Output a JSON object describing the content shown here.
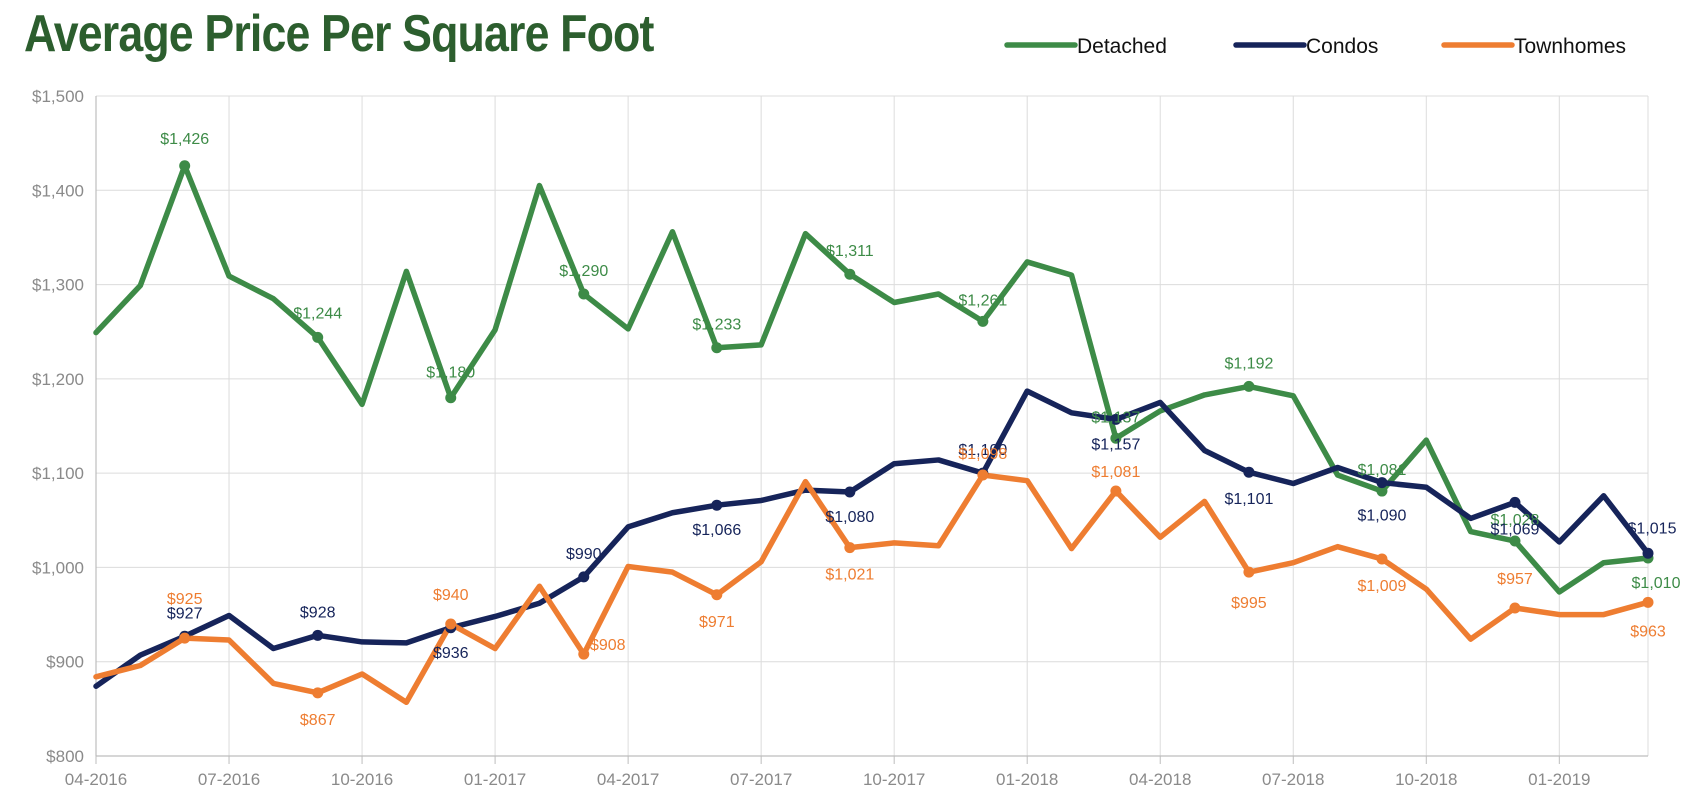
{
  "chart_data": {
    "type": "line",
    "title": "Average Price Per Square Foot",
    "xlabel": "",
    "ylabel": "",
    "ylim": [
      800,
      1500
    ],
    "yticks": [
      800,
      900,
      1000,
      1100,
      1200,
      1300,
      1400,
      1500
    ],
    "ytick_labels": [
      "$800",
      "$900",
      "$1,000",
      "$1,100",
      "$1,200",
      "$1,300",
      "$1,400",
      "$1,500"
    ],
    "x": [
      "04-2016",
      "05-2016",
      "06-2016",
      "07-2016",
      "08-2016",
      "09-2016",
      "10-2016",
      "11-2016",
      "12-2016",
      "01-2017",
      "02-2017",
      "03-2017",
      "04-2017",
      "05-2017",
      "06-2017",
      "07-2017",
      "08-2017",
      "09-2017",
      "10-2017",
      "11-2017",
      "12-2017",
      "01-2018",
      "02-2018",
      "03-2018",
      "04-2018",
      "05-2018",
      "06-2018",
      "07-2018",
      "08-2018",
      "09-2018",
      "10-2018",
      "11-2018",
      "12-2018",
      "01-2019",
      "02-2019",
      "03-2019"
    ],
    "xtick_labels": [
      "04-2016",
      "07-2016",
      "10-2016",
      "01-2017",
      "04-2017",
      "07-2017",
      "10-2017",
      "01-2018",
      "04-2018",
      "07-2018",
      "10-2018",
      "01-2019"
    ],
    "grid": true,
    "legend_position": "top-right",
    "series": [
      {
        "name": "Detached",
        "color": "#3d8b47",
        "values": [
          1249,
          1299,
          1426,
          1309,
          1285,
          1244,
          1173,
          1314,
          1180,
          1252,
          1405,
          1290,
          1253,
          1356,
          1233,
          1236,
          1354,
          1311,
          1281,
          1290,
          1261,
          1324,
          1310,
          1137,
          1166,
          1183,
          1192,
          1182,
          1098,
          1081,
          1135,
          1038,
          1028,
          974,
          1005,
          1010
        ],
        "markers": [
          2,
          5,
          8,
          11,
          14,
          17,
          20,
          23,
          26,
          29,
          32,
          35
        ],
        "labels": [
          "$1,426",
          "$1,244",
          "$1,180",
          "$1,290",
          "$1,233",
          "$1,311",
          "$1,261",
          "$1,137",
          "$1,192",
          "$1,081",
          "$1,028",
          "$1,010"
        ]
      },
      {
        "name": "Condos",
        "color": "#16245a",
        "values": [
          874,
          907,
          927,
          949,
          914,
          928,
          921,
          920,
          936,
          948,
          962,
          990,
          1043,
          1058,
          1066,
          1071,
          1082,
          1080,
          1110,
          1114,
          1100,
          1187,
          1164,
          1157,
          1175,
          1124,
          1101,
          1089,
          1106,
          1090,
          1085,
          1052,
          1069,
          1027,
          1076,
          1015
        ],
        "markers": [
          2,
          5,
          8,
          11,
          14,
          17,
          20,
          23,
          26,
          29,
          32,
          35
        ],
        "labels": [
          "$927",
          "$928",
          "$936",
          "$990",
          "$1,066",
          "$1,080",
          "$1,100",
          "$1,157",
          "$1,101",
          "$1,090",
          "$1,069",
          "$1,015"
        ]
      },
      {
        "name": "Townhomes",
        "color": "#ee7d31",
        "values": [
          884,
          896,
          925,
          923,
          877,
          867,
          887,
          857,
          940,
          914,
          980,
          908,
          1001,
          995,
          971,
          1006,
          1091,
          1021,
          1026,
          1023,
          1098,
          1092,
          1020,
          1081,
          1032,
          1070,
          995,
          1005,
          1022,
          1009,
          977,
          924,
          957,
          950,
          950,
          963
        ],
        "markers": [
          2,
          5,
          8,
          11,
          14,
          17,
          20,
          23,
          26,
          29,
          32,
          35
        ],
        "labels": [
          "$925",
          "$867",
          "$940",
          "$908",
          "$971",
          "$1,021",
          "$1,098",
          "$1,081",
          "$995",
          "$1,009",
          "$957",
          "$963"
        ]
      }
    ]
  }
}
